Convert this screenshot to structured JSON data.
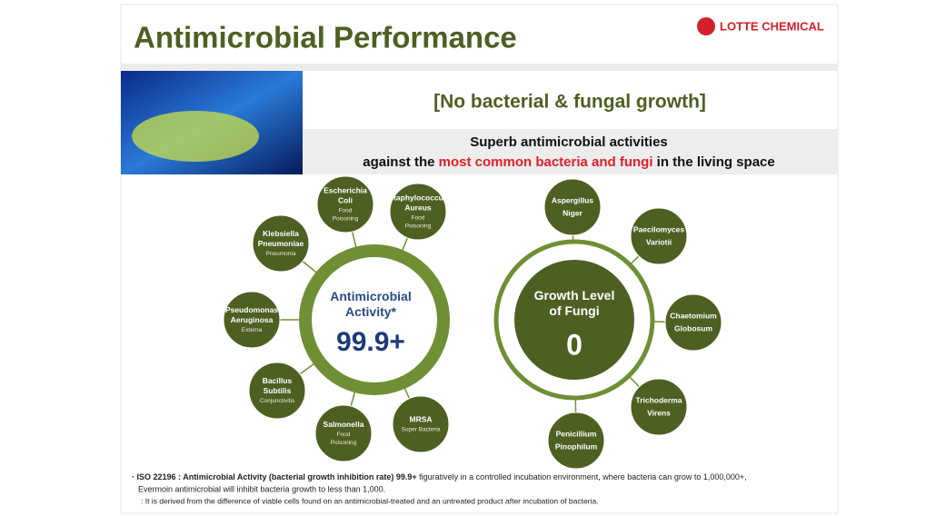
{
  "header": {
    "title": "Antimicrobial Performance",
    "logo": "LOTTE CHEMICAL"
  },
  "banner": {
    "heading": "[No bacterial & fungal growth]",
    "line1": "Superb antimicrobial activities",
    "line2": {
      "before": "against the ",
      "highlight": "most common bacteria and fungi",
      "after": " in the living space"
    }
  },
  "bacteria": {
    "center": {
      "label": [
        "Antimicrobial",
        "Activity*"
      ],
      "value": "99.9+"
    },
    "nodes": [
      {
        "name": [
          "Escherichia",
          "Coli"
        ],
        "note": [
          "Food",
          "Poisoning"
        ]
      },
      {
        "name": [
          "Staphylococcus",
          "Aureus"
        ],
        "note": [
          "Food",
          "Poisoning"
        ]
      },
      {
        "name": [
          "Klebsiella",
          "Pneumoniae"
        ],
        "note": [
          "Pneumonia"
        ]
      },
      {
        "name": [
          "Pseudomonas",
          "Aeruginosa"
        ],
        "note": [
          "Externa"
        ]
      },
      {
        "name": [
          "Bacillus",
          "Subtilis"
        ],
        "note": [
          "Conjunctivitis"
        ]
      },
      {
        "name": [
          "Salmonella"
        ],
        "note": [
          "Food",
          "Poisoning"
        ]
      },
      {
        "name": [
          "MRSA"
        ],
        "note": [
          "Super Bacteria"
        ]
      }
    ]
  },
  "fungi": {
    "center": {
      "label": [
        "Growth Level",
        "of Fungi"
      ],
      "value": "0"
    },
    "nodes": [
      {
        "name": [
          "Aspergillus",
          "Niger"
        ]
      },
      {
        "name": [
          "Paecilomyces",
          "Variotii"
        ]
      },
      {
        "name": [
          "Chaetomium",
          "Globosum"
        ]
      },
      {
        "name": [
          "Trichoderma",
          "Virens"
        ]
      },
      {
        "name": [
          "Penicillium",
          "Pinophilum"
        ]
      }
    ]
  },
  "footnote": {
    "bold": "· ISO 22196 : Antimicrobial Activity (bacterial growth inhibition rate) 99.9+",
    "rest": " figuratively in a controlled incubation environment, where bacteria can grow to 1,000,000+,",
    "line2": "Evermoin antimicrobial will inhibit bacteria growth to less than 1,000.",
    "line3": ": It is derived from the difference of viable cells found on an antimicrobial-treated and an untreated product after incubation of bacteria."
  }
}
